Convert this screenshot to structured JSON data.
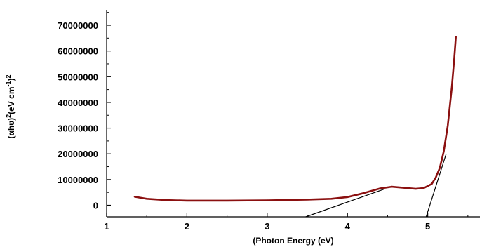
{
  "chart_data": {
    "type": "line",
    "xlabel": "(Photon Energy (eV)",
    "ylabel_parts": [
      "(αhυ)",
      "2",
      "(eV cm",
      "-1",
      ")",
      "2"
    ],
    "xlim": [
      1,
      5.65
    ],
    "ylim": [
      -4500000,
      76000000
    ],
    "x_ticks": [
      1,
      2,
      3,
      4,
      5
    ],
    "y_ticks": [
      0,
      10000000,
      20000000,
      30000000,
      40000000,
      50000000,
      60000000,
      70000000
    ],
    "x_tick_labels": [
      "1",
      "2",
      "3",
      "4",
      "5"
    ],
    "y_tick_labels": [
      "0",
      "10000000",
      "20000000",
      "30000000",
      "40000000",
      "50000000",
      "60000000",
      "70000000"
    ],
    "series": [
      {
        "color": "#8b1010",
        "points": [
          [
            1.35,
            3300000
          ],
          [
            1.5,
            2500000
          ],
          [
            1.75,
            2000000
          ],
          [
            2.0,
            1800000
          ],
          [
            2.5,
            1800000
          ],
          [
            3.0,
            1900000
          ],
          [
            3.5,
            2200000
          ],
          [
            3.8,
            2500000
          ],
          [
            4.0,
            3200000
          ],
          [
            4.2,
            4700000
          ],
          [
            4.4,
            6500000
          ],
          [
            4.55,
            7200000
          ],
          [
            4.7,
            6800000
          ],
          [
            4.85,
            6400000
          ],
          [
            4.95,
            6700000
          ],
          [
            5.05,
            8300000
          ],
          [
            5.1,
            10800000
          ],
          [
            5.15,
            14500000
          ],
          [
            5.2,
            21000000
          ],
          [
            5.25,
            31000000
          ],
          [
            5.3,
            46000000
          ],
          [
            5.33,
            57000000
          ],
          [
            5.35,
            65500000
          ]
        ]
      }
    ],
    "tangent_lines": [
      {
        "color": "#000000",
        "points": [
          [
            3.48,
            -4500000
          ],
          [
            4.45,
            6200000
          ]
        ]
      },
      {
        "color": "#000000",
        "points": [
          [
            4.98,
            -4500000
          ],
          [
            5.23,
            20000000
          ]
        ]
      }
    ],
    "grid": false,
    "legend": "none"
  }
}
